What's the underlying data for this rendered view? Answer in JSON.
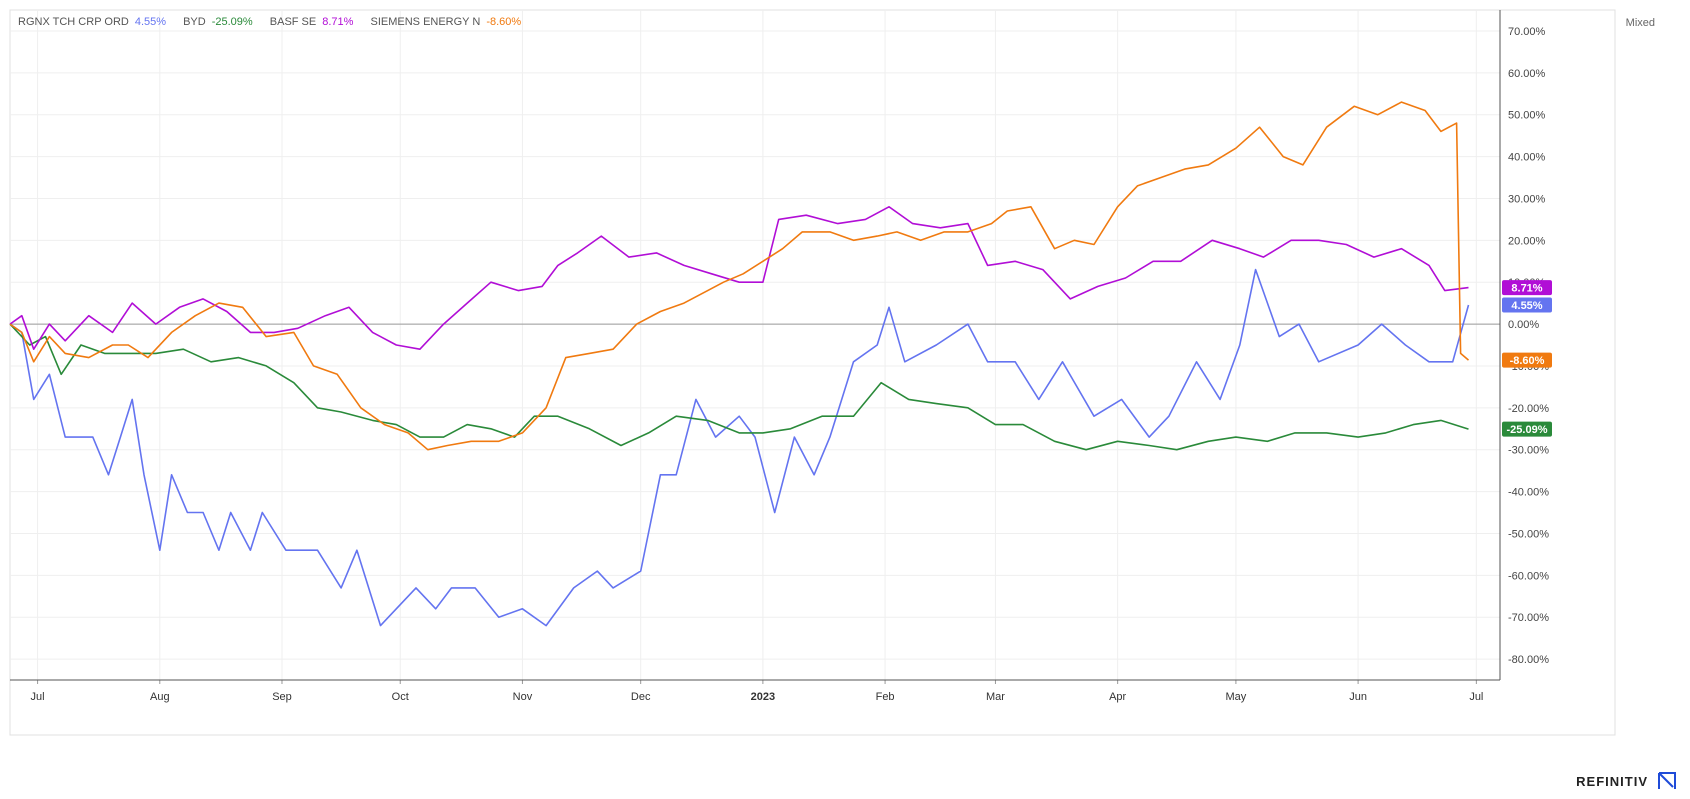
{
  "scale_mode": "Mixed",
  "brand": "REFINITIV",
  "chart_data": {
    "type": "line",
    "title": "",
    "ylabel": "",
    "xlabel": "",
    "y_unit": "%",
    "ylim": [
      -85,
      75
    ],
    "y_ticks": [
      "70.00%",
      "60.00%",
      "50.00%",
      "40.00%",
      "30.00%",
      "20.00%",
      "10.00%",
      "0.00%",
      "-10.00%",
      "-20.00%",
      "-30.00%",
      "-40.00%",
      "-50.00%",
      "-60.00%",
      "-70.00%",
      "-80.00%"
    ],
    "y_tick_values": [
      70,
      60,
      50,
      40,
      30,
      20,
      10,
      0,
      -10,
      -20,
      -30,
      -40,
      -50,
      -60,
      -70,
      -80
    ],
    "x_range": [
      "2022-06-24",
      "2023-07-07"
    ],
    "x_ticks": [
      {
        "label": "Jul",
        "date": "2022-07-01"
      },
      {
        "label": "Aug",
        "date": "2022-08-01"
      },
      {
        "label": "Sep",
        "date": "2022-09-01"
      },
      {
        "label": "Oct",
        "date": "2022-10-01"
      },
      {
        "label": "Nov",
        "date": "2022-11-01"
      },
      {
        "label": "Dec",
        "date": "2022-12-01"
      },
      {
        "label": "2023",
        "date": "2023-01-01",
        "bold": true
      },
      {
        "label": "Feb",
        "date": "2023-02-01"
      },
      {
        "label": "Mar",
        "date": "2023-03-01"
      },
      {
        "label": "Apr",
        "date": "2023-04-01"
      },
      {
        "label": "May",
        "date": "2023-05-01"
      },
      {
        "label": "Jun",
        "date": "2023-06-01"
      },
      {
        "label": "Jul",
        "date": "2023-07-01"
      }
    ],
    "grid": true,
    "legend_position": "top-left",
    "series": [
      {
        "name": "RGNX TCH CRP ORD",
        "color": "#6474f0",
        "last_label": "4.55%",
        "values": [
          [
            "2022-06-24",
            0
          ],
          [
            "2022-06-27",
            -2
          ],
          [
            "2022-06-30",
            -18
          ],
          [
            "2022-07-04",
            -12
          ],
          [
            "2022-07-08",
            -27
          ],
          [
            "2022-07-15",
            -27
          ],
          [
            "2022-07-19",
            -36
          ],
          [
            "2022-07-22",
            -27
          ],
          [
            "2022-07-25",
            -18
          ],
          [
            "2022-07-28",
            -36
          ],
          [
            "2022-08-01",
            -54
          ],
          [
            "2022-08-04",
            -36
          ],
          [
            "2022-08-08",
            -45
          ],
          [
            "2022-08-12",
            -45
          ],
          [
            "2022-08-16",
            -54
          ],
          [
            "2022-08-19",
            -45
          ],
          [
            "2022-08-24",
            -54
          ],
          [
            "2022-08-27",
            -45
          ],
          [
            "2022-09-02",
            -54
          ],
          [
            "2022-09-10",
            -54
          ],
          [
            "2022-09-16",
            -63
          ],
          [
            "2022-09-20",
            -54
          ],
          [
            "2022-09-26",
            -72
          ],
          [
            "2022-09-30",
            -68
          ],
          [
            "2022-10-05",
            -63
          ],
          [
            "2022-10-10",
            -68
          ],
          [
            "2022-10-14",
            -63
          ],
          [
            "2022-10-20",
            -63
          ],
          [
            "2022-10-26",
            -70
          ],
          [
            "2022-11-01",
            -68
          ],
          [
            "2022-11-07",
            -72
          ],
          [
            "2022-11-14",
            -63
          ],
          [
            "2022-11-20",
            -59
          ],
          [
            "2022-11-24",
            -63
          ],
          [
            "2022-12-01",
            -59
          ],
          [
            "2022-12-06",
            -36
          ],
          [
            "2022-12-10",
            -36
          ],
          [
            "2022-12-15",
            -18
          ],
          [
            "2022-12-20",
            -27
          ],
          [
            "2022-12-26",
            -22
          ],
          [
            "2022-12-30",
            -27
          ],
          [
            "2023-01-04",
            -45
          ],
          [
            "2023-01-09",
            -27
          ],
          [
            "2023-01-14",
            -36
          ],
          [
            "2023-01-18",
            -27
          ],
          [
            "2023-01-24",
            -9
          ],
          [
            "2023-01-30",
            -5
          ],
          [
            "2023-02-02",
            4
          ],
          [
            "2023-02-06",
            -9
          ],
          [
            "2023-02-14",
            -5
          ],
          [
            "2023-02-22",
            0
          ],
          [
            "2023-02-27",
            -9
          ],
          [
            "2023-03-06",
            -9
          ],
          [
            "2023-03-12",
            -18
          ],
          [
            "2023-03-18",
            -9
          ],
          [
            "2023-03-26",
            -22
          ],
          [
            "2023-04-02",
            -18
          ],
          [
            "2023-04-09",
            -27
          ],
          [
            "2023-04-14",
            -22
          ],
          [
            "2023-04-21",
            -9
          ],
          [
            "2023-04-27",
            -18
          ],
          [
            "2023-05-02",
            -5
          ],
          [
            "2023-05-06",
            13
          ],
          [
            "2023-05-12",
            -3
          ],
          [
            "2023-05-17",
            0
          ],
          [
            "2023-05-22",
            -9
          ],
          [
            "2023-06-01",
            -5
          ],
          [
            "2023-06-07",
            0
          ],
          [
            "2023-06-13",
            -5
          ],
          [
            "2023-06-19",
            -9
          ],
          [
            "2023-06-25",
            -9
          ],
          [
            "2023-06-29",
            4.55
          ]
        ]
      },
      {
        "name": "BYD",
        "color": "#2a8a3a",
        "last_label": "-25.09%",
        "values": [
          [
            "2022-06-24",
            0
          ],
          [
            "2022-06-29",
            -5
          ],
          [
            "2022-07-03",
            -3
          ],
          [
            "2022-07-07",
            -12
          ],
          [
            "2022-07-12",
            -5
          ],
          [
            "2022-07-18",
            -7
          ],
          [
            "2022-07-24",
            -7
          ],
          [
            "2022-07-31",
            -7
          ],
          [
            "2022-08-07",
            -6
          ],
          [
            "2022-08-14",
            -9
          ],
          [
            "2022-08-21",
            -8
          ],
          [
            "2022-08-28",
            -10
          ],
          [
            "2022-09-04",
            -14
          ],
          [
            "2022-09-10",
            -20
          ],
          [
            "2022-09-16",
            -21
          ],
          [
            "2022-09-24",
            -23
          ],
          [
            "2022-09-30",
            -24
          ],
          [
            "2022-10-06",
            -27
          ],
          [
            "2022-10-12",
            -27
          ],
          [
            "2022-10-18",
            -24
          ],
          [
            "2022-10-24",
            -25
          ],
          [
            "2022-10-30",
            -27
          ],
          [
            "2022-11-04",
            -22
          ],
          [
            "2022-11-10",
            -22
          ],
          [
            "2022-11-18",
            -25
          ],
          [
            "2022-11-26",
            -29
          ],
          [
            "2022-12-03",
            -26
          ],
          [
            "2022-12-10",
            -22
          ],
          [
            "2022-12-18",
            -23
          ],
          [
            "2022-12-26",
            -26
          ],
          [
            "2023-01-01",
            -26
          ],
          [
            "2023-01-08",
            -25
          ],
          [
            "2023-01-16",
            -22
          ],
          [
            "2023-01-24",
            -22
          ],
          [
            "2023-01-31",
            -14
          ],
          [
            "2023-02-07",
            -18
          ],
          [
            "2023-02-14",
            -19
          ],
          [
            "2023-02-22",
            -20
          ],
          [
            "2023-03-01",
            -24
          ],
          [
            "2023-03-08",
            -24
          ],
          [
            "2023-03-16",
            -28
          ],
          [
            "2023-03-24",
            -30
          ],
          [
            "2023-04-01",
            -28
          ],
          [
            "2023-04-09",
            -29
          ],
          [
            "2023-04-16",
            -30
          ],
          [
            "2023-04-24",
            -28
          ],
          [
            "2023-05-01",
            -27
          ],
          [
            "2023-05-09",
            -28
          ],
          [
            "2023-05-16",
            -26
          ],
          [
            "2023-05-24",
            -26
          ],
          [
            "2023-06-01",
            -27
          ],
          [
            "2023-06-08",
            -26
          ],
          [
            "2023-06-15",
            -24
          ],
          [
            "2023-06-22",
            -23
          ],
          [
            "2023-06-29",
            -25.09
          ]
        ]
      },
      {
        "name": "BASF SE",
        "color": "#b10ed6",
        "last_label": "8.71%",
        "values": [
          [
            "2022-06-24",
            0
          ],
          [
            "2022-06-27",
            2
          ],
          [
            "2022-06-30",
            -6
          ],
          [
            "2022-07-04",
            0
          ],
          [
            "2022-07-08",
            -4
          ],
          [
            "2022-07-14",
            2
          ],
          [
            "2022-07-20",
            -2
          ],
          [
            "2022-07-25",
            5
          ],
          [
            "2022-07-31",
            0
          ],
          [
            "2022-08-06",
            4
          ],
          [
            "2022-08-12",
            6
          ],
          [
            "2022-08-18",
            3
          ],
          [
            "2022-08-24",
            -2
          ],
          [
            "2022-08-30",
            -2
          ],
          [
            "2022-09-05",
            -1
          ],
          [
            "2022-09-12",
            2
          ],
          [
            "2022-09-18",
            4
          ],
          [
            "2022-09-24",
            -2
          ],
          [
            "2022-09-30",
            -5
          ],
          [
            "2022-10-06",
            -6
          ],
          [
            "2022-10-12",
            0
          ],
          [
            "2022-10-18",
            5
          ],
          [
            "2022-10-24",
            10
          ],
          [
            "2022-10-31",
            8
          ],
          [
            "2022-11-06",
            9
          ],
          [
            "2022-11-10",
            14
          ],
          [
            "2022-11-15",
            17
          ],
          [
            "2022-11-21",
            21
          ],
          [
            "2022-11-28",
            16
          ],
          [
            "2022-12-05",
            17
          ],
          [
            "2022-12-12",
            14
          ],
          [
            "2022-12-19",
            12
          ],
          [
            "2022-12-26",
            10
          ],
          [
            "2023-01-01",
            10
          ],
          [
            "2023-01-05",
            25
          ],
          [
            "2023-01-12",
            26
          ],
          [
            "2023-01-20",
            24
          ],
          [
            "2023-01-27",
            25
          ],
          [
            "2023-02-02",
            28
          ],
          [
            "2023-02-08",
            24
          ],
          [
            "2023-02-15",
            23
          ],
          [
            "2023-02-22",
            24
          ],
          [
            "2023-02-27",
            14
          ],
          [
            "2023-03-06",
            15
          ],
          [
            "2023-03-13",
            13
          ],
          [
            "2023-03-20",
            6
          ],
          [
            "2023-03-27",
            9
          ],
          [
            "2023-04-03",
            11
          ],
          [
            "2023-04-10",
            15
          ],
          [
            "2023-04-17",
            15
          ],
          [
            "2023-04-25",
            20
          ],
          [
            "2023-05-02",
            18
          ],
          [
            "2023-05-08",
            16
          ],
          [
            "2023-05-15",
            20
          ],
          [
            "2023-05-22",
            20
          ],
          [
            "2023-05-29",
            19
          ],
          [
            "2023-06-05",
            16
          ],
          [
            "2023-06-12",
            18
          ],
          [
            "2023-06-19",
            14
          ],
          [
            "2023-06-23",
            8
          ],
          [
            "2023-06-29",
            8.71
          ]
        ]
      },
      {
        "name": "SIEMENS ENERGY N",
        "color": "#f07a10",
        "last_label": "-8.60%",
        "values": [
          [
            "2022-06-24",
            0
          ],
          [
            "2022-06-27",
            -2
          ],
          [
            "2022-06-30",
            -9
          ],
          [
            "2022-07-04",
            -3
          ],
          [
            "2022-07-08",
            -7
          ],
          [
            "2022-07-14",
            -8
          ],
          [
            "2022-07-20",
            -5
          ],
          [
            "2022-07-24",
            -5
          ],
          [
            "2022-07-29",
            -8
          ],
          [
            "2022-08-04",
            -2
          ],
          [
            "2022-08-10",
            2
          ],
          [
            "2022-08-16",
            5
          ],
          [
            "2022-08-22",
            4
          ],
          [
            "2022-08-28",
            -3
          ],
          [
            "2022-09-04",
            -2
          ],
          [
            "2022-09-09",
            -10
          ],
          [
            "2022-09-15",
            -12
          ],
          [
            "2022-09-21",
            -20
          ],
          [
            "2022-09-27",
            -24
          ],
          [
            "2022-10-03",
            -26
          ],
          [
            "2022-10-08",
            -30
          ],
          [
            "2022-10-13",
            -29
          ],
          [
            "2022-10-19",
            -28
          ],
          [
            "2022-10-26",
            -28
          ],
          [
            "2022-11-01",
            -26
          ],
          [
            "2022-11-07",
            -20
          ],
          [
            "2022-11-12",
            -8
          ],
          [
            "2022-11-18",
            -7
          ],
          [
            "2022-11-24",
            -6
          ],
          [
            "2022-11-30",
            0
          ],
          [
            "2022-12-06",
            3
          ],
          [
            "2022-12-12",
            5
          ],
          [
            "2022-12-18",
            8
          ],
          [
            "2022-12-22",
            10
          ],
          [
            "2022-12-27",
            12
          ],
          [
            "2023-01-01",
            15
          ],
          [
            "2023-01-06",
            18
          ],
          [
            "2023-01-11",
            22
          ],
          [
            "2023-01-18",
            22
          ],
          [
            "2023-01-24",
            20
          ],
          [
            "2023-01-30",
            21
          ],
          [
            "2023-02-04",
            22
          ],
          [
            "2023-02-10",
            20
          ],
          [
            "2023-02-16",
            22
          ],
          [
            "2023-02-22",
            22
          ],
          [
            "2023-02-28",
            24
          ],
          [
            "2023-03-04",
            27
          ],
          [
            "2023-03-10",
            28
          ],
          [
            "2023-03-16",
            18
          ],
          [
            "2023-03-21",
            20
          ],
          [
            "2023-03-26",
            19
          ],
          [
            "2023-04-01",
            28
          ],
          [
            "2023-04-06",
            33
          ],
          [
            "2023-04-12",
            35
          ],
          [
            "2023-04-18",
            37
          ],
          [
            "2023-04-24",
            38
          ],
          [
            "2023-05-01",
            42
          ],
          [
            "2023-05-07",
            47
          ],
          [
            "2023-05-13",
            40
          ],
          [
            "2023-05-18",
            38
          ],
          [
            "2023-05-24",
            47
          ],
          [
            "2023-05-31",
            52
          ],
          [
            "2023-06-06",
            50
          ],
          [
            "2023-06-12",
            53
          ],
          [
            "2023-06-18",
            51
          ],
          [
            "2023-06-22",
            46
          ],
          [
            "2023-06-26",
            48
          ],
          [
            "2023-06-27",
            -7
          ],
          [
            "2023-06-29",
            -8.6
          ]
        ]
      }
    ]
  }
}
